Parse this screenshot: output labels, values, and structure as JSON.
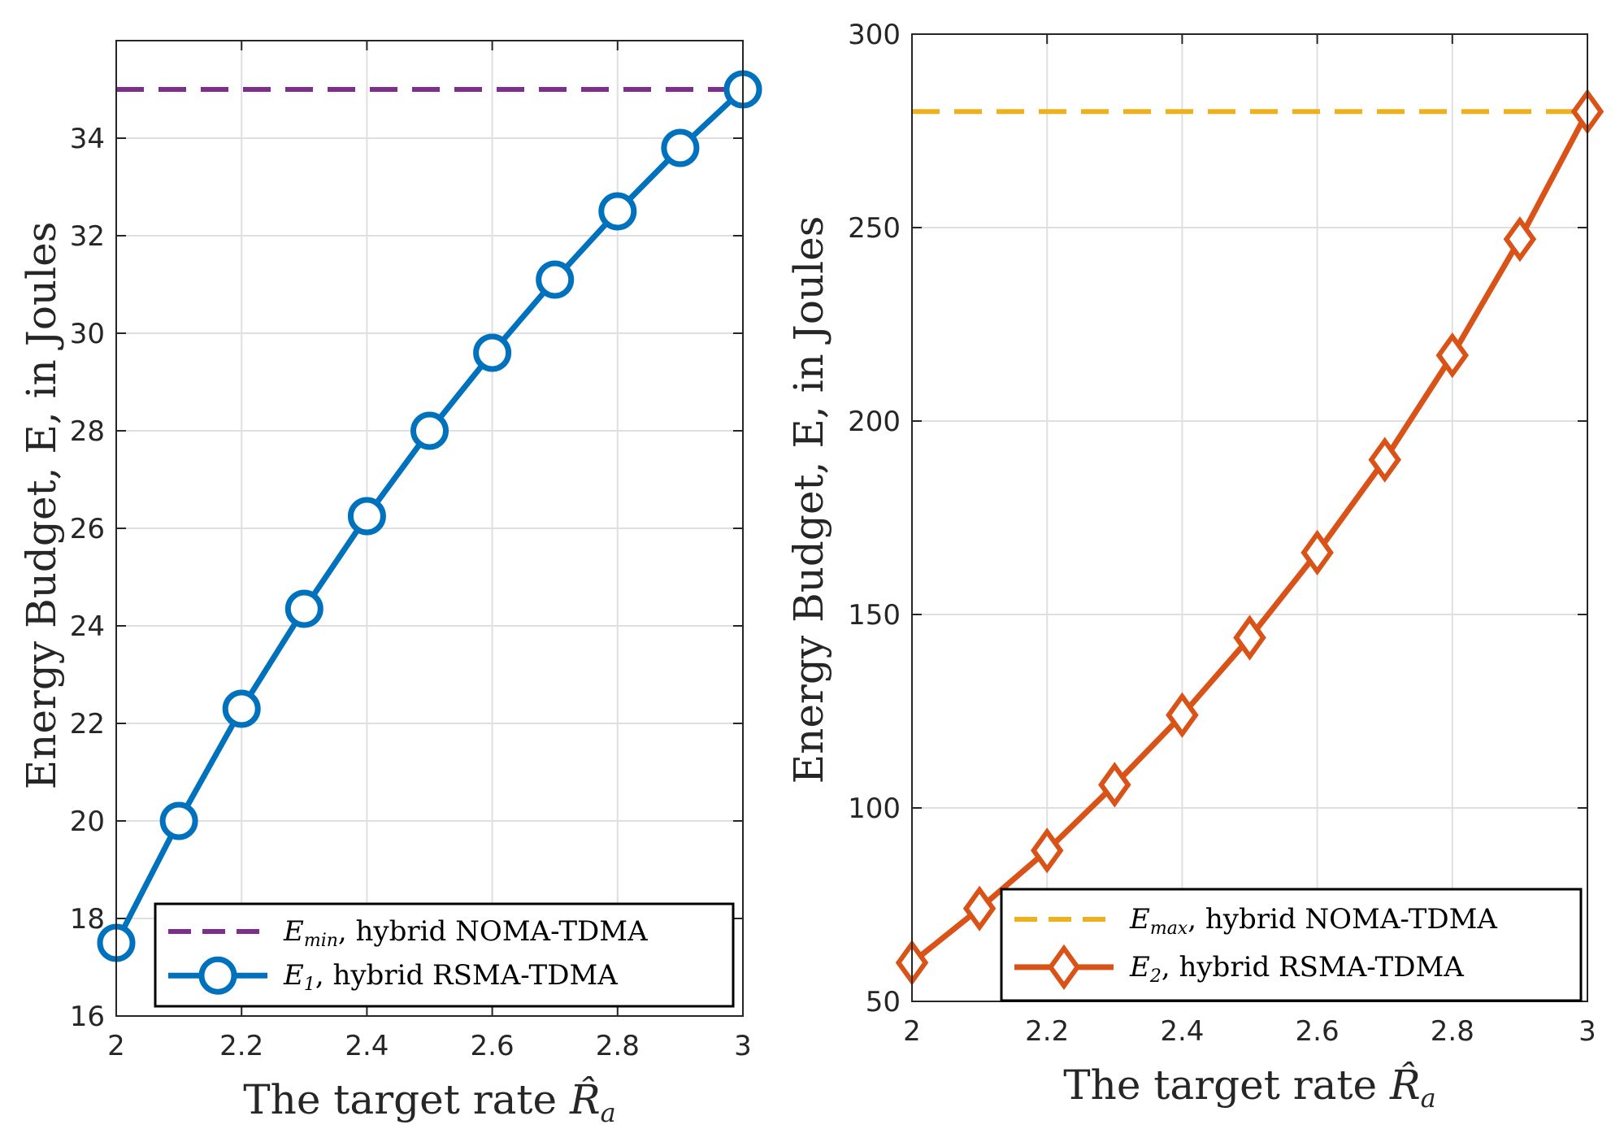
{
  "chart_data": [
    {
      "type": "line",
      "xlabel": "The target rate ",
      "xlabel_symbol": "R̂",
      "xlabel_sub": "a",
      "ylabel": "Energy Budget, E, in Joules",
      "xlim": [
        2,
        3
      ],
      "ylim": [
        16,
        36
      ],
      "xticks": [
        2,
        2.2,
        2.4,
        2.6,
        2.8,
        3
      ],
      "xtick_labels": [
        "2",
        "2.2",
        "2.4",
        "2.6",
        "2.8",
        "3"
      ],
      "yticks": [
        16,
        18,
        20,
        22,
        24,
        26,
        28,
        30,
        32,
        34
      ],
      "ytick_labels": [
        "16",
        "18",
        "20",
        "22",
        "24",
        "26",
        "28",
        "30",
        "32",
        "34"
      ],
      "grid": true,
      "legend_position": "bottom-right",
      "series": [
        {
          "name": "E_min, hybrid NOMA-TDMA",
          "legend_symbol": "E",
          "legend_sub": "min",
          "legend_rest": ", hybrid NOMA-TDMA",
          "style": "dashed",
          "marker": "none",
          "color": "#7E2F8E",
          "x": [
            2,
            3
          ],
          "values": [
            35,
            35
          ]
        },
        {
          "name": "E_1, hybrid RSMA-TDMA",
          "legend_symbol": "E",
          "legend_sub": "1",
          "legend_rest": ", hybrid RSMA-TDMA",
          "style": "solid",
          "marker": "circle",
          "color": "#0072BD",
          "x": [
            2.0,
            2.1,
            2.2,
            2.3,
            2.4,
            2.5,
            2.6,
            2.7,
            2.8,
            2.9,
            3.0
          ],
          "values": [
            17.5,
            20.0,
            22.3,
            24.35,
            26.25,
            28.0,
            29.6,
            31.1,
            32.5,
            33.8,
            35.0
          ]
        }
      ]
    },
    {
      "type": "line",
      "xlabel": "The target rate ",
      "xlabel_symbol": "R̂",
      "xlabel_sub": "a",
      "ylabel": "Energy Budget, E, in Joules",
      "xlim": [
        2,
        3
      ],
      "ylim": [
        50,
        300
      ],
      "xticks": [
        2,
        2.2,
        2.4,
        2.6,
        2.8,
        3
      ],
      "xtick_labels": [
        "2",
        "2.2",
        "2.4",
        "2.6",
        "2.8",
        "3"
      ],
      "yticks": [
        50,
        100,
        150,
        200,
        250,
        300
      ],
      "ytick_labels": [
        "50",
        "100",
        "150",
        "200",
        "250",
        "300"
      ],
      "grid": true,
      "legend_position": "bottom-right",
      "series": [
        {
          "name": "E_max, hybrid NOMA-TDMA",
          "legend_symbol": "E",
          "legend_sub": "max",
          "legend_rest": ", hybrid NOMA-TDMA",
          "style": "dashed",
          "marker": "none",
          "color": "#EDB120",
          "x": [
            2,
            3
          ],
          "values": [
            280,
            280
          ]
        },
        {
          "name": "E_2, hybrid RSMA-TDMA",
          "legend_symbol": "E",
          "legend_sub": "2",
          "legend_rest": ", hybrid RSMA-TDMA",
          "style": "solid",
          "marker": "diamond",
          "color": "#D95319",
          "x": [
            2.0,
            2.1,
            2.2,
            2.3,
            2.4,
            2.5,
            2.6,
            2.7,
            2.8,
            2.9,
            3.0
          ],
          "values": [
            60,
            74,
            89,
            106,
            124,
            144,
            166,
            190,
            217,
            247,
            280
          ]
        }
      ]
    }
  ]
}
